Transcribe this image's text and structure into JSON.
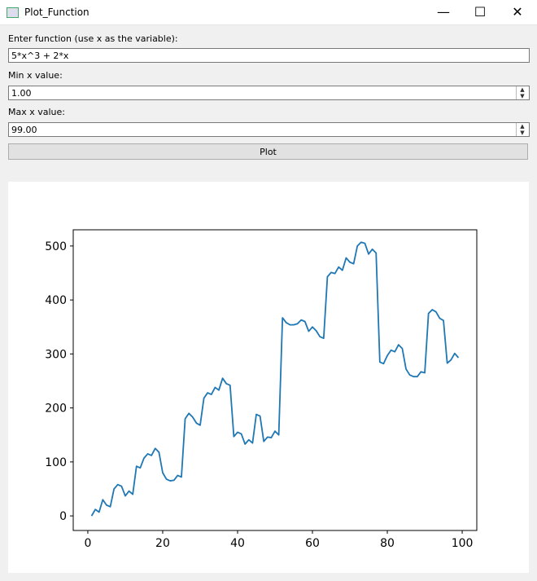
{
  "window": {
    "title": "Plot_Function"
  },
  "form": {
    "function_label": "Enter function (use x as the variable):",
    "function_value": "5*x^3 + 2*x",
    "min_label": "Min x value:",
    "min_value": "1.00",
    "max_label": "Max x value:",
    "max_value": "99.00",
    "plot_button": "Plot"
  },
  "chart_data": {
    "type": "line",
    "x": [
      1,
      2,
      3,
      4,
      5,
      6,
      7,
      8,
      9,
      10,
      11,
      12,
      13,
      14,
      15,
      16,
      17,
      18,
      19,
      20,
      21,
      22,
      23,
      24,
      25,
      26,
      27,
      28,
      29,
      30,
      31,
      32,
      33,
      34,
      35,
      36,
      37,
      38,
      39,
      40,
      41,
      42,
      43,
      44,
      45,
      46,
      47,
      48,
      49,
      50,
      51,
      52,
      53,
      54,
      55,
      56,
      57,
      58,
      59,
      60,
      61,
      62,
      63,
      64,
      65,
      66,
      67,
      68,
      69,
      70,
      71,
      72,
      73,
      74,
      75,
      76,
      77,
      78,
      79,
      80,
      81,
      82,
      83,
      84,
      85,
      86,
      87,
      88,
      89,
      90,
      91,
      92,
      93,
      94,
      95,
      96,
      97,
      98,
      99
    ],
    "series": [
      {
        "color": "#1f77b4",
        "values": [
          0,
          12,
          7,
          30,
          20,
          17,
          50,
          58,
          55,
          37,
          46,
          40,
          92,
          89,
          107,
          115,
          112,
          125,
          118,
          80,
          68,
          65,
          66,
          75,
          72,
          180,
          190,
          183,
          172,
          168,
          218,
          228,
          225,
          238,
          233,
          255,
          245,
          242,
          147,
          155,
          152,
          133,
          141,
          135,
          188,
          185,
          138,
          146,
          145,
          157,
          150,
          367,
          358,
          354,
          354,
          356,
          363,
          360,
          342,
          350,
          343,
          332,
          329,
          443,
          451,
          449,
          461,
          455,
          478,
          470,
          467,
          500,
          507,
          505,
          485,
          494,
          487,
          285,
          282,
          297,
          307,
          304,
          317,
          310,
          272,
          261,
          258,
          258,
          267,
          265,
          375,
          382,
          378,
          366,
          362,
          283,
          289,
          301,
          293
        ]
      }
    ],
    "xlim": [
      -3.9,
      103.9
    ],
    "ylim": [
      -27,
      530
    ],
    "xticks": [
      0,
      20,
      40,
      60,
      80,
      100
    ],
    "yticks": [
      0,
      100,
      200,
      300,
      400,
      500
    ]
  }
}
